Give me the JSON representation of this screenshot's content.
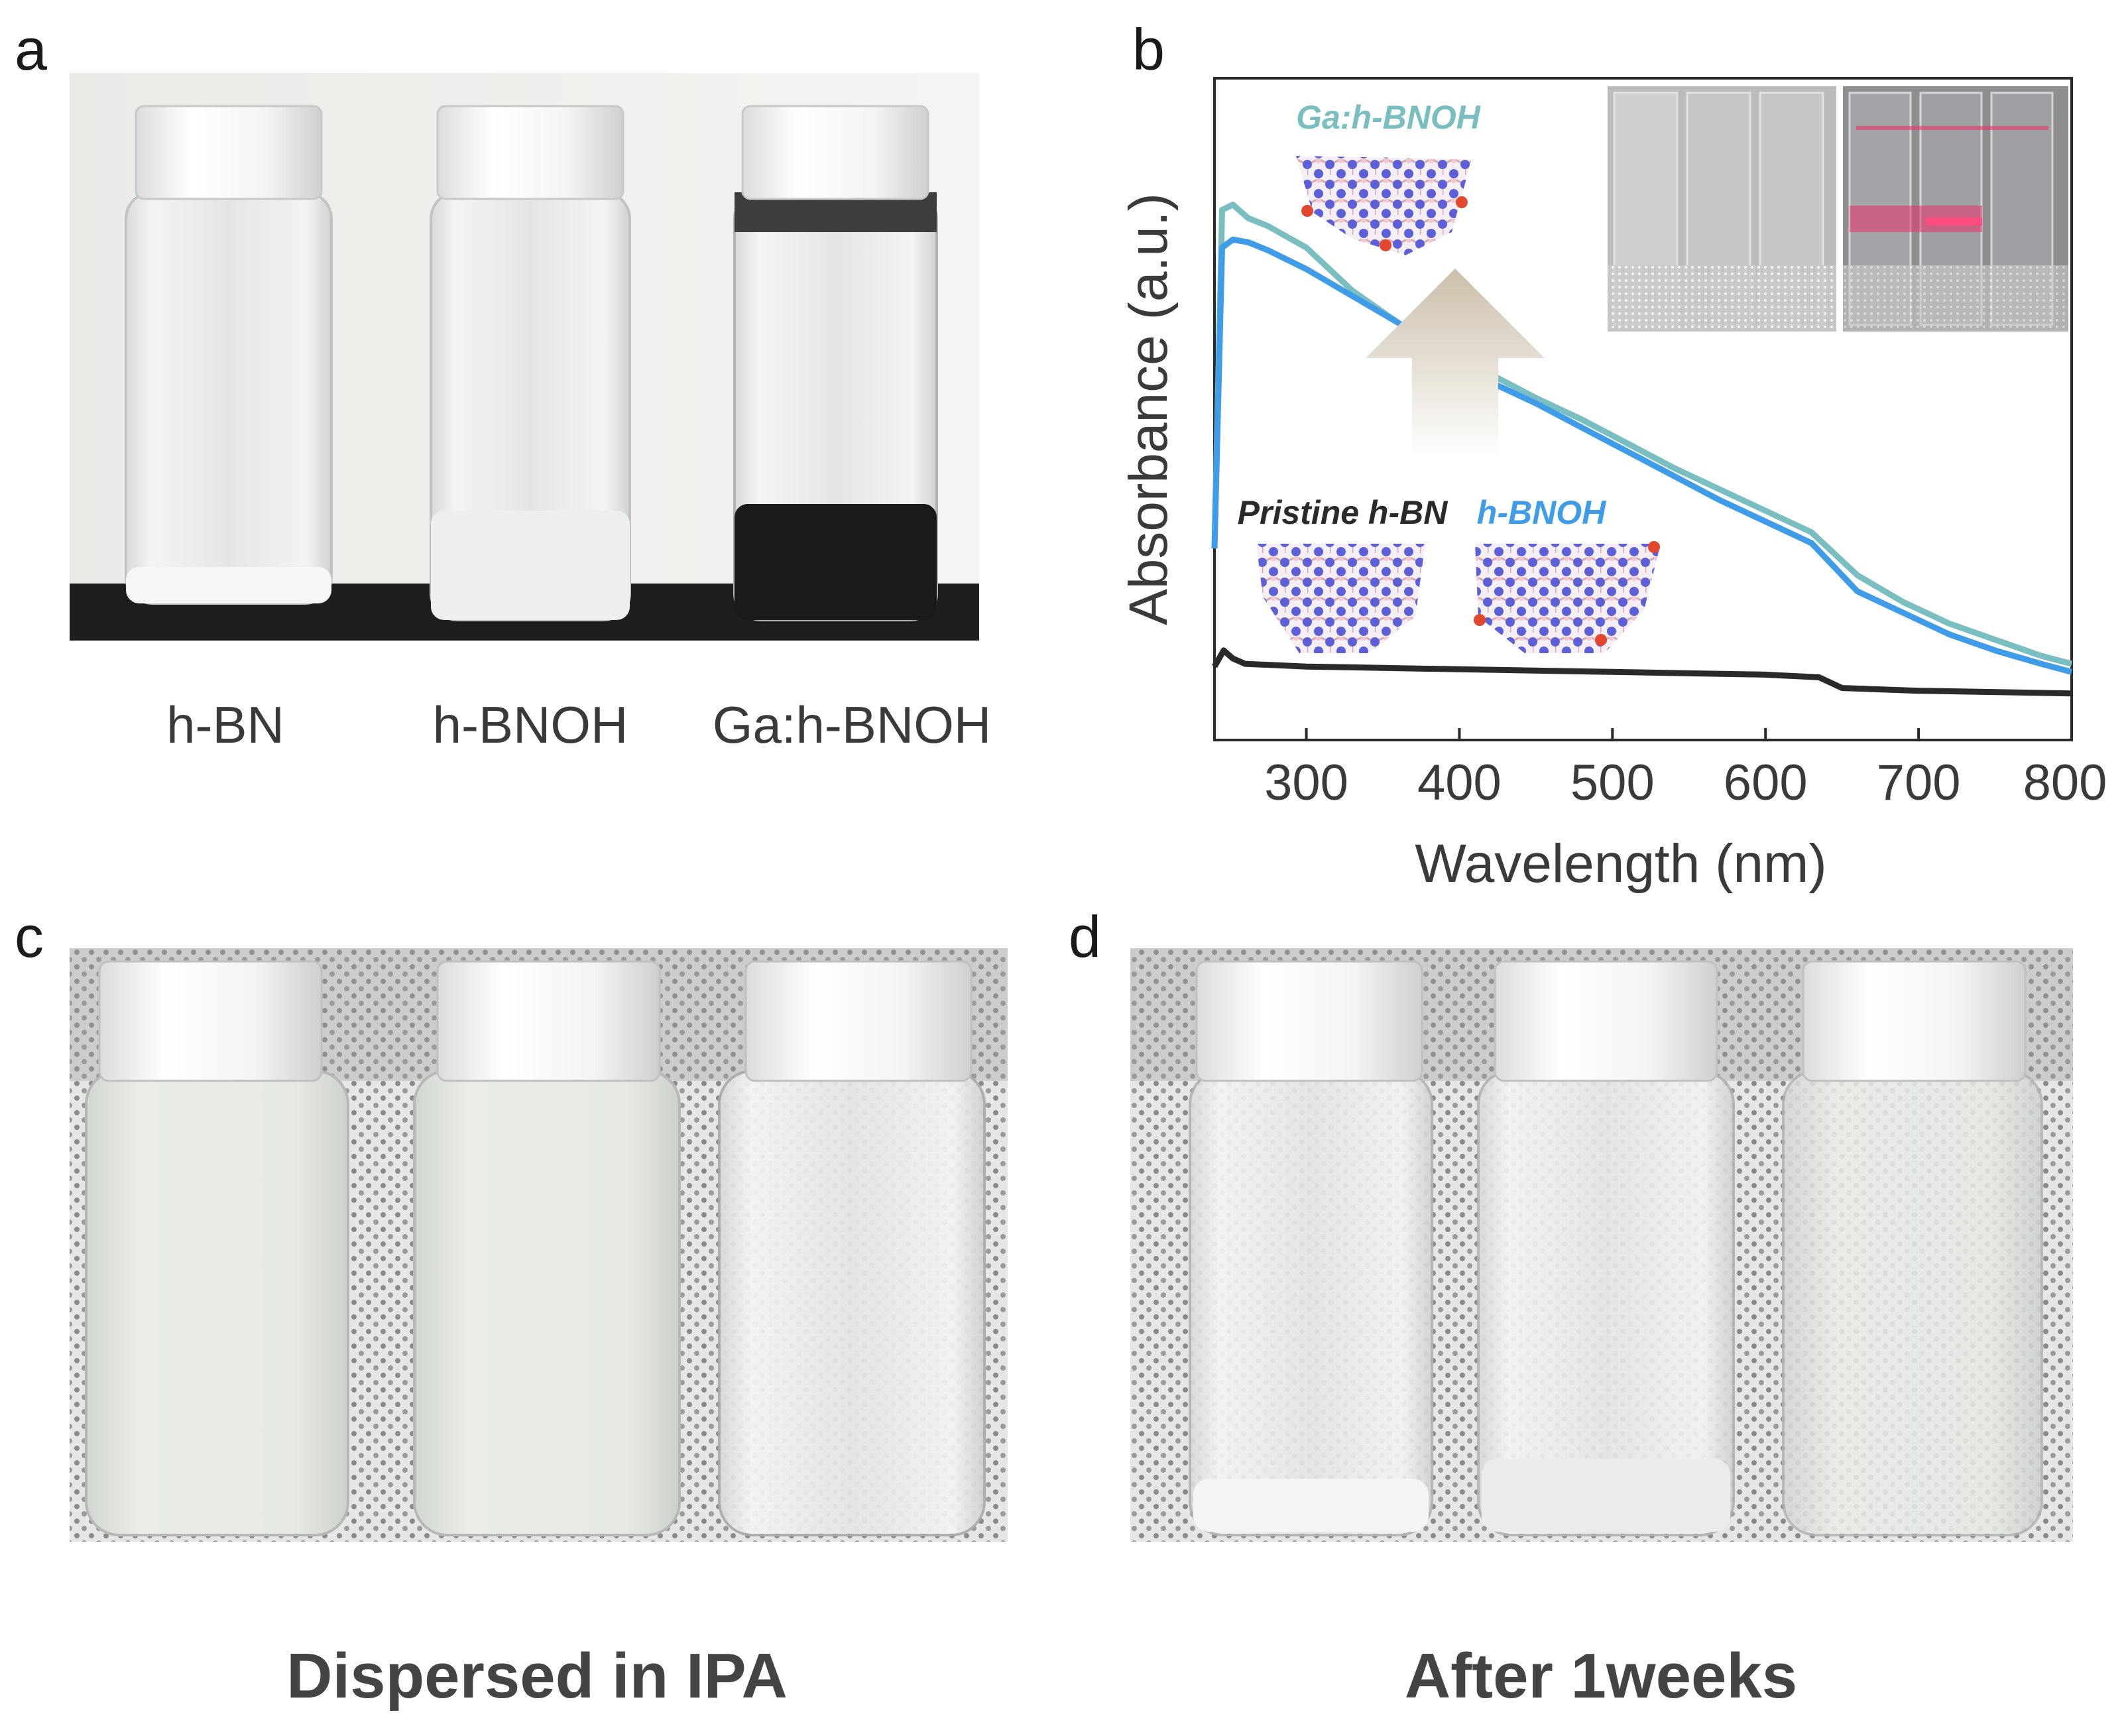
{
  "panels": {
    "a": {
      "letter": "a",
      "vial_labels": [
        "h-BN",
        "h-BNOH",
        "Ga:h-BNOH"
      ]
    },
    "b": {
      "letter": "b"
    },
    "c": {
      "letter": "c",
      "caption": "Dispersed in IPA"
    },
    "d": {
      "letter": "d",
      "caption": "After 1weeks"
    }
  },
  "chart_data": {
    "type": "line",
    "xlabel": "Wavelength (nm)",
    "ylabel": "Absorbance (a.u.)",
    "xlim": [
      240,
      800
    ],
    "ylim": [
      0,
      1
    ],
    "xticks": [
      300,
      400,
      500,
      600,
      700,
      800
    ],
    "grid": false,
    "series": [
      {
        "name": "Ga:h-BNOH",
        "color": "#79bec0",
        "x": [
          240,
          245,
          252,
          262,
          275,
          300,
          330,
          360,
          390,
          420,
          450,
          480,
          510,
          540,
          570,
          600,
          630,
          660,
          690,
          720,
          750,
          780,
          800
        ],
        "y": [
          0.3,
          0.93,
          0.94,
          0.915,
          0.9,
          0.86,
          0.78,
          0.72,
          0.67,
          0.625,
          0.58,
          0.54,
          0.495,
          0.45,
          0.41,
          0.37,
          0.33,
          0.25,
          0.2,
          0.16,
          0.13,
          0.1,
          0.085
        ]
      },
      {
        "name": "h-BNOH",
        "color": "#3f9ce8",
        "x": [
          240,
          245,
          252,
          262,
          275,
          300,
          330,
          360,
          390,
          400,
          420,
          450,
          480,
          510,
          540,
          570,
          600,
          630,
          660,
          690,
          720,
          750,
          780,
          800
        ],
        "y": [
          0.3,
          0.86,
          0.875,
          0.87,
          0.855,
          0.82,
          0.77,
          0.72,
          0.66,
          0.645,
          0.61,
          0.57,
          0.525,
          0.48,
          0.435,
          0.39,
          0.35,
          0.31,
          0.22,
          0.18,
          0.14,
          0.11,
          0.085,
          0.07
        ]
      },
      {
        "name": "Pristine h-BN",
        "color": "#2a2a2a",
        "x": [
          240,
          246,
          252,
          260,
          300,
          400,
          500,
          600,
          635,
          650,
          700,
          800
        ],
        "y": [
          0.08,
          0.11,
          0.095,
          0.085,
          0.08,
          0.075,
          0.07,
          0.065,
          0.06,
          0.04,
          0.035,
          0.03
        ]
      }
    ],
    "annotations": [
      "Ga:h-BNOH",
      "Pristine h-BN",
      "h-BNOH"
    ]
  },
  "colors": {
    "accent_teal": "#79bec0",
    "accent_blue": "#3f9ce8",
    "line_black": "#2a2a2a",
    "laser": "#e8306a"
  }
}
